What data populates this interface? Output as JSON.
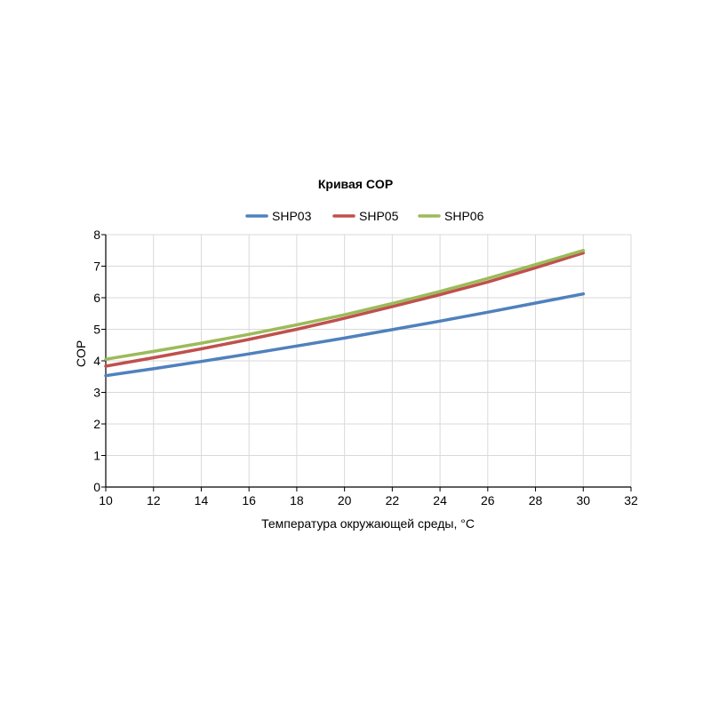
{
  "chart_data": {
    "type": "line",
    "title": "Кривая COP",
    "xlabel": "Температура окружающей среды, °C",
    "ylabel": "COP",
    "xlim": [
      10,
      32
    ],
    "ylim": [
      0,
      8
    ],
    "xticks": [
      10,
      12,
      14,
      16,
      18,
      20,
      22,
      24,
      26,
      28,
      30,
      32
    ],
    "yticks": [
      0,
      1,
      2,
      3,
      4,
      5,
      6,
      7,
      8
    ],
    "grid": true,
    "legend_position": "top-center",
    "series": [
      {
        "name": "SHP03",
        "color": "#4f81bd",
        "x": [
          10,
          12,
          14,
          16,
          18,
          20,
          22,
          24,
          26,
          28,
          30
        ],
        "y": [
          3.53,
          3.75,
          3.98,
          4.22,
          4.47,
          4.72,
          4.99,
          5.26,
          5.54,
          5.83,
          6.12
        ]
      },
      {
        "name": "SHP05",
        "color": "#c0504d",
        "x": [
          10,
          12,
          14,
          16,
          18,
          20,
          22,
          24,
          26,
          28,
          30
        ],
        "y": [
          3.83,
          4.1,
          4.38,
          4.68,
          5.0,
          5.35,
          5.72,
          6.1,
          6.5,
          6.95,
          7.42
        ]
      },
      {
        "name": "SHP06",
        "color": "#9bbb59",
        "x": [
          10,
          12,
          14,
          16,
          18,
          20,
          22,
          24,
          26,
          28,
          30
        ],
        "y": [
          4.05,
          4.3,
          4.56,
          4.84,
          5.14,
          5.46,
          5.82,
          6.2,
          6.61,
          7.05,
          7.5
        ]
      }
    ]
  }
}
